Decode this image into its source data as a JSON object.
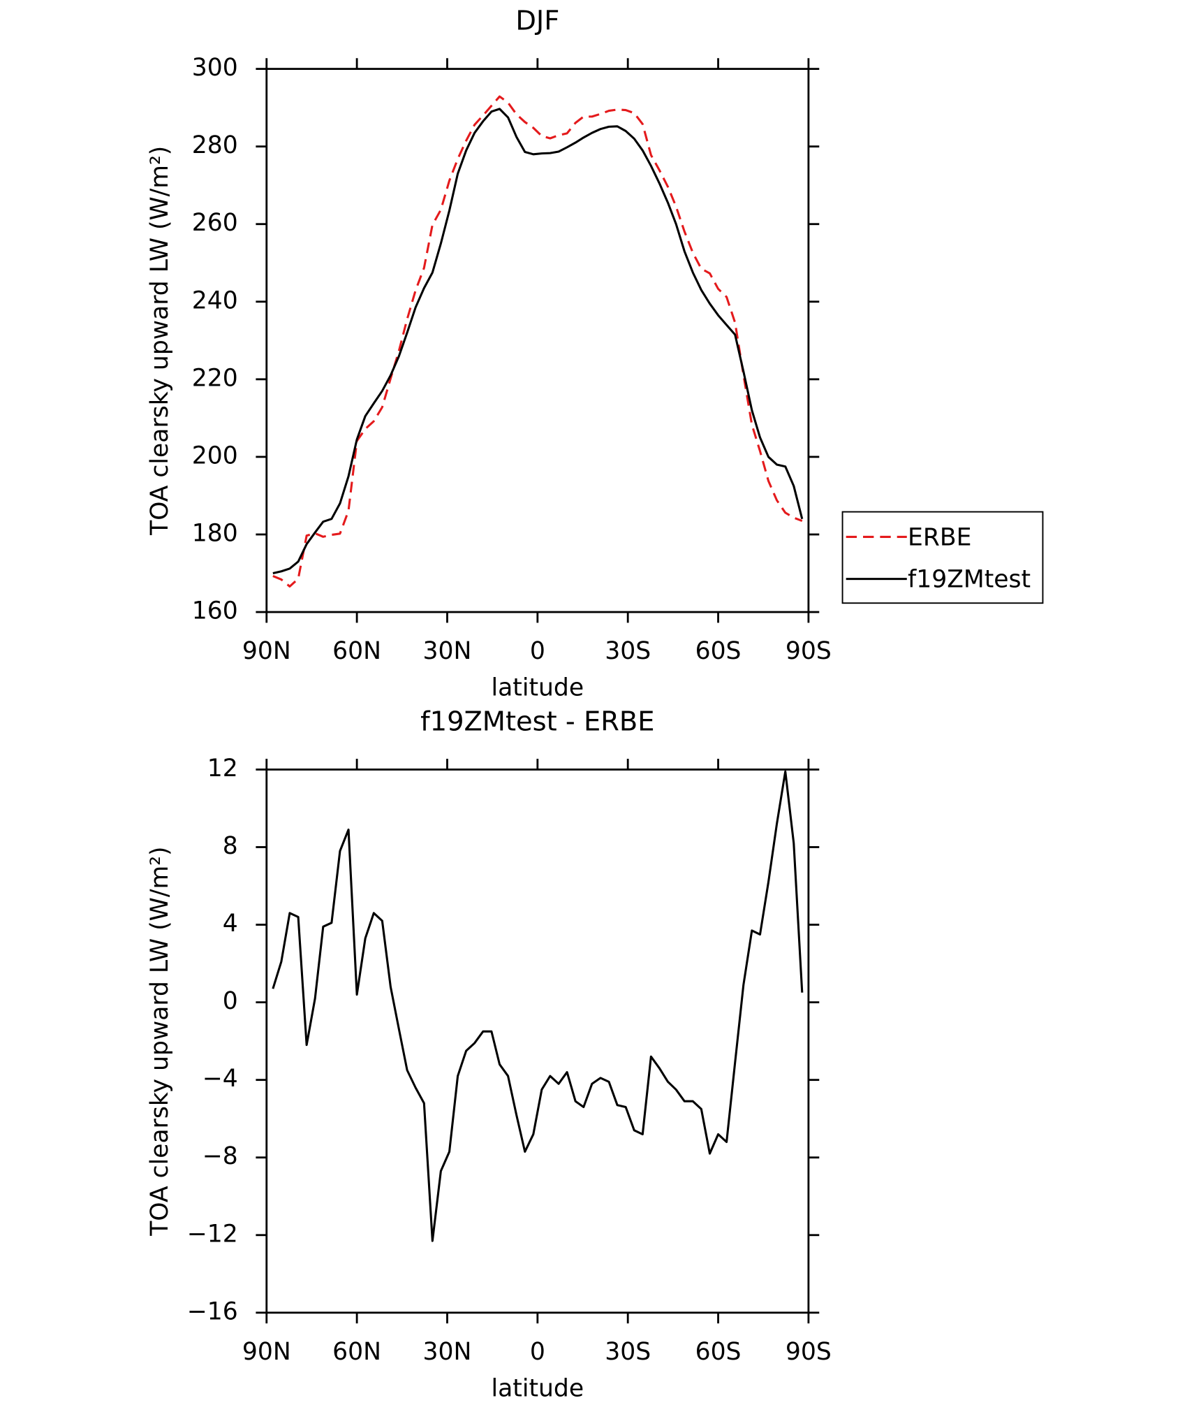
{
  "chart_data": [
    {
      "type": "line",
      "title": "DJF",
      "xlabel": "latitude",
      "ylabel": "TOA clearsky upward LW (W/m²)",
      "x": [
        87.9,
        85.1,
        82.3,
        79.5,
        76.7,
        73.9,
        71.2,
        68.4,
        65.6,
        62.8,
        60.0,
        57.2,
        54.4,
        51.6,
        48.8,
        46.0,
        43.3,
        40.5,
        37.7,
        34.9,
        32.1,
        29.3,
        26.5,
        23.7,
        20.9,
        18.1,
        15.3,
        12.6,
        9.8,
        7.0,
        4.2,
        1.4,
        -1.4,
        -4.2,
        -7.0,
        -9.8,
        -12.6,
        -15.3,
        -18.1,
        -20.9,
        -23.7,
        -26.5,
        -29.3,
        -32.1,
        -34.9,
        -37.7,
        -40.5,
        -43.3,
        -46.0,
        -48.8,
        -51.6,
        -54.4,
        -57.2,
        -60.0,
        -62.8,
        -65.6,
        -68.4,
        -71.2,
        -73.9,
        -76.7,
        -79.5,
        -82.3,
        -85.1,
        -87.9
      ],
      "series": [
        {
          "name": "ERBE",
          "color": "#e41a1c",
          "dash": "dashed",
          "values": [
            169.3,
            168.4,
            166.6,
            168.6,
            179.7,
            180.3,
            179.4,
            179.9,
            180.2,
            186.1,
            204.1,
            207.2,
            209.2,
            212.8,
            220.2,
            227.4,
            235.5,
            242.9,
            248.7,
            259.8,
            263.7,
            271.2,
            276.8,
            281.5,
            285.6,
            288.0,
            290.5,
            292.9,
            291.3,
            288.3,
            286.3,
            284.8,
            282.7,
            282.1,
            282.9,
            283.4,
            286.1,
            287.7,
            287.7,
            288.4,
            289.2,
            289.5,
            289.4,
            288.6,
            285.8,
            277.8,
            273.9,
            269.6,
            264.5,
            258.1,
            252.6,
            248.5,
            247.3,
            243.3,
            241.2,
            234.6,
            221.1,
            208.3,
            201.5,
            193.8,
            188.8,
            185.6,
            184.3,
            183.5
          ]
        },
        {
          "name": "f19ZMtest",
          "color": "#000000",
          "dash": "solid",
          "values": [
            170.0,
            170.5,
            171.2,
            173.0,
            177.5,
            180.5,
            183.3,
            184.0,
            188.0,
            195.0,
            204.5,
            210.5,
            213.8,
            217.0,
            221.0,
            226.0,
            232.0,
            238.5,
            243.5,
            247.5,
            255.0,
            263.5,
            273.0,
            279.0,
            283.5,
            286.5,
            289.0,
            289.7,
            287.5,
            282.5,
            278.6,
            278.0,
            278.2,
            278.3,
            278.7,
            279.8,
            281.0,
            282.3,
            283.5,
            284.5,
            285.1,
            285.2,
            284.0,
            282.0,
            279.0,
            275.0,
            270.5,
            265.5,
            260.0,
            253.0,
            247.5,
            243.0,
            239.5,
            236.5,
            234.0,
            231.5,
            222.0,
            212.0,
            205.0,
            200.0,
            198.0,
            197.5,
            192.5,
            184.0
          ]
        }
      ],
      "xlim": [
        90,
        -90
      ],
      "xticks": [
        {
          "value": 90,
          "label": "90N"
        },
        {
          "value": 60,
          "label": "60N"
        },
        {
          "value": 30,
          "label": "30N"
        },
        0,
        {
          "value": -30,
          "label": "30S"
        },
        {
          "value": -60,
          "label": "60S"
        },
        {
          "value": -90,
          "label": "90S"
        }
      ],
      "ylim": [
        160,
        300
      ],
      "yticks": [
        160,
        180,
        200,
        220,
        240,
        260,
        280,
        300
      ],
      "legend": "right"
    },
    {
      "type": "line",
      "title": "f19ZMtest - ERBE",
      "xlabel": "latitude",
      "ylabel": "TOA clearsky upward LW (W/m²)",
      "x": [
        87.9,
        85.1,
        82.3,
        79.5,
        76.7,
        73.9,
        71.2,
        68.4,
        65.6,
        62.8,
        60.0,
        57.2,
        54.4,
        51.6,
        48.8,
        46.0,
        43.3,
        40.5,
        37.7,
        34.9,
        32.1,
        29.3,
        26.5,
        23.7,
        20.9,
        18.1,
        15.3,
        12.6,
        9.8,
        7.0,
        4.2,
        1.4,
        -1.4,
        -4.2,
        -7.0,
        -9.8,
        -12.6,
        -15.3,
        -18.1,
        -20.9,
        -23.7,
        -26.5,
        -29.3,
        -32.1,
        -34.9,
        -37.7,
        -40.5,
        -43.3,
        -46.0,
        -48.8,
        -51.6,
        -54.4,
        -57.2,
        -60.0,
        -62.8,
        -65.6,
        -68.4,
        -71.2,
        -73.9,
        -76.7,
        -79.5,
        -82.3,
        -85.1,
        -87.9
      ],
      "series": [
        {
          "color": "#000000",
          "dash": "solid",
          "values": [
            0.7,
            2.1,
            4.6,
            4.4,
            -2.2,
            0.2,
            3.9,
            4.1,
            7.8,
            8.9,
            0.4,
            3.3,
            4.6,
            4.2,
            0.8,
            -1.4,
            -3.5,
            -4.4,
            -5.2,
            -12.3,
            -8.7,
            -7.7,
            -3.8,
            -2.5,
            -2.1,
            -1.5,
            -1.5,
            -3.2,
            -3.8,
            -5.8,
            -7.7,
            -6.8,
            -4.5,
            -3.8,
            -4.2,
            -3.6,
            -5.1,
            -5.4,
            -4.2,
            -3.9,
            -4.1,
            -5.3,
            -5.4,
            -6.6,
            -6.8,
            -2.8,
            -3.4,
            -4.1,
            -4.5,
            -5.1,
            -5.1,
            -5.5,
            -7.8,
            -6.8,
            -7.2,
            -3.1,
            0.9,
            3.7,
            3.5,
            6.2,
            9.2,
            11.9,
            8.2,
            0.5
          ]
        }
      ],
      "xlim": [
        90,
        -90
      ],
      "xticks": [
        {
          "value": 90,
          "label": "90N"
        },
        {
          "value": 60,
          "label": "60N"
        },
        {
          "value": 30,
          "label": "30N"
        },
        0,
        {
          "value": -30,
          "label": "30S"
        },
        {
          "value": -60,
          "label": "60S"
        },
        {
          "value": -90,
          "label": "90S"
        }
      ],
      "ylim": [
        -16,
        12
      ],
      "yticks": [
        {
          "value": -16,
          "label": "−16"
        },
        {
          "value": -12,
          "label": "−12"
        },
        {
          "value": -8,
          "label": "−8"
        },
        {
          "value": -4,
          "label": "−4"
        },
        0,
        4,
        8,
        12
      ]
    }
  ]
}
